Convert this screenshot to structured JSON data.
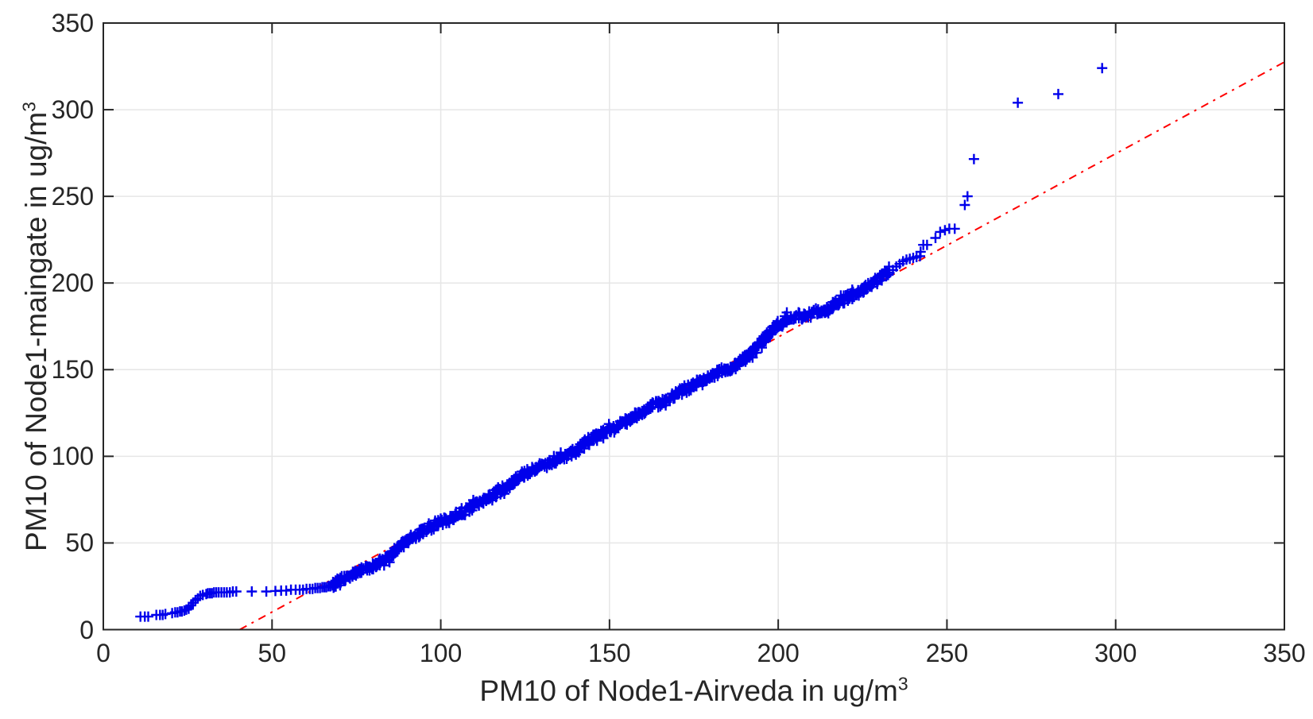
{
  "figure": {
    "kind": "qq-plot",
    "background": "#FFFFFF"
  },
  "chart_data": {
    "type": "scatter",
    "title": "",
    "xlabel": "PM10 of Node1-Airveda in ug/m",
    "xlabel_sup": "3",
    "ylabel": "PM10 of Node1-maingate in ug/m",
    "ylabel_sup": "3",
    "xlim": [
      0,
      350
    ],
    "ylim": [
      0,
      350
    ],
    "xticks": [
      0,
      50,
      100,
      150,
      200,
      250,
      300,
      350
    ],
    "yticks": [
      0,
      50,
      100,
      150,
      200,
      250,
      300,
      350
    ],
    "grid": true,
    "legend": "none",
    "style": {
      "marker_shape": "plus",
      "marker_color": "#0000EB",
      "marker_size": 13,
      "marker_stroke_width": 2.4,
      "band_jitter_x": 1.5,
      "band_jitter_y": 4.5,
      "grid_color": "#E6E6E6",
      "axis_color": "#262626",
      "tick_length": 13,
      "ref_line_color": "#FF0000",
      "ref_line_dash": "10 7 3 7",
      "ref_line_width": 2
    },
    "reference_line": {
      "style": "dash-dot",
      "color": "#FF0000",
      "points": [
        [
          40.4,
          0
        ],
        [
          350,
          327.5
        ]
      ]
    },
    "series": [
      {
        "name": "lower-tail-quantiles",
        "render": "points",
        "points": [
          [
            11,
            7.5
          ],
          [
            12.3,
            7.5
          ],
          [
            13.3,
            7.5
          ],
          [
            15.7,
            8.5
          ],
          [
            16.8,
            8.5
          ],
          [
            17.6,
            8.5
          ],
          [
            18.4,
            9
          ],
          [
            20.4,
            9.5
          ],
          [
            21.3,
            10
          ],
          [
            22,
            10
          ],
          [
            22.7,
            10.5
          ],
          [
            23.3,
            10.5
          ],
          [
            24,
            11
          ],
          [
            24.6,
            11.5
          ],
          [
            25.3,
            12
          ],
          [
            25.3,
            13
          ],
          [
            26,
            14
          ],
          [
            26.6,
            15.5
          ],
          [
            27.3,
            17
          ],
          [
            28,
            18
          ],
          [
            28.7,
            19.5
          ],
          [
            29.5,
            20
          ],
          [
            30.5,
            20.5
          ],
          [
            31,
            21
          ],
          [
            31.6,
            21
          ],
          [
            32.2,
            21
          ],
          [
            32.8,
            21.5
          ],
          [
            33.5,
            21.5
          ],
          [
            34.2,
            21.5
          ],
          [
            35,
            21.5
          ],
          [
            35.8,
            21.5
          ],
          [
            36.6,
            21.5
          ],
          [
            37.5,
            21.5
          ],
          [
            38.4,
            22
          ],
          [
            39.4,
            22
          ],
          [
            44,
            22
          ],
          [
            48.3,
            22
          ],
          [
            51,
            22.3
          ],
          [
            52.7,
            22.5
          ],
          [
            54.2,
            22.5
          ],
          [
            55.6,
            23
          ],
          [
            57,
            23
          ],
          [
            58.2,
            23
          ],
          [
            59.2,
            23
          ],
          [
            60.2,
            23.5
          ],
          [
            61.2,
            23.5
          ],
          [
            62,
            23.5
          ],
          [
            62.8,
            24
          ],
          [
            63.5,
            24
          ],
          [
            64.2,
            24
          ],
          [
            64.9,
            24.5
          ],
          [
            65.5,
            24.5
          ],
          [
            66.1,
            24.5
          ],
          [
            66.7,
            25
          ],
          [
            67.3,
            25
          ],
          [
            67.9,
            25.5
          ],
          [
            68.4,
            26.5
          ],
          [
            69,
            27.5
          ]
        ]
      },
      {
        "name": "dense-quantile-band",
        "render": "band",
        "marker_count": 820,
        "anchors": [
          [
            68,
            26
          ],
          [
            70,
            28
          ],
          [
            72,
            30
          ],
          [
            74,
            31.5
          ],
          [
            76,
            33.5
          ],
          [
            78,
            35
          ],
          [
            80,
            37
          ],
          [
            83,
            40
          ],
          [
            86,
            44
          ],
          [
            89,
            49
          ],
          [
            92,
            54
          ],
          [
            95,
            57
          ],
          [
            98,
            60
          ],
          [
            100,
            62
          ],
          [
            103,
            64.5
          ],
          [
            106,
            67
          ],
          [
            109,
            70
          ],
          [
            112,
            74
          ],
          [
            116,
            78
          ],
          [
            120,
            83
          ],
          [
            123,
            87
          ],
          [
            125,
            90
          ],
          [
            128,
            93
          ],
          [
            131,
            95
          ],
          [
            134,
            97
          ],
          [
            137,
            100
          ],
          [
            140,
            103
          ],
          [
            143,
            108
          ],
          [
            146,
            112
          ],
          [
            150,
            115
          ],
          [
            153,
            119
          ],
          [
            156,
            122
          ],
          [
            159,
            125
          ],
          [
            162,
            128
          ],
          [
            165,
            131
          ],
          [
            168,
            134
          ],
          [
            171,
            137
          ],
          [
            174,
            140
          ],
          [
            177,
            143
          ],
          [
            180,
            146
          ],
          [
            183,
            149
          ],
          [
            186,
            151
          ],
          [
            189,
            155
          ],
          [
            192,
            160
          ],
          [
            195,
            166
          ],
          [
            198,
            172
          ],
          [
            200,
            176
          ],
          [
            202,
            179
          ],
          [
            205,
            181
          ],
          [
            208,
            181.5
          ],
          [
            211,
            182.5
          ],
          [
            213,
            183.5
          ],
          [
            216,
            187
          ],
          [
            219,
            190
          ],
          [
            222,
            193
          ],
          [
            225,
            196
          ],
          [
            228,
            200
          ],
          [
            230,
            202.5
          ],
          [
            233,
            206
          ]
        ]
      },
      {
        "name": "upper-tail-quantiles",
        "render": "points",
        "points": [
          [
            234,
            207.5
          ],
          [
            235,
            209.5
          ],
          [
            236,
            211
          ],
          [
            237,
            212.5
          ],
          [
            238,
            213.5
          ],
          [
            239,
            214
          ],
          [
            240,
            214.5
          ],
          [
            241,
            215
          ],
          [
            242,
            215.5
          ],
          [
            242.2,
            218
          ],
          [
            243,
            222
          ],
          [
            244.1,
            222
          ],
          [
            246.6,
            226
          ],
          [
            248,
            229.5
          ],
          [
            249.4,
            230.5
          ],
          [
            250.7,
            231.3
          ],
          [
            252.3,
            231.3
          ],
          [
            255.3,
            245
          ],
          [
            256.1,
            250
          ],
          [
            258,
            271.5
          ],
          [
            271,
            304
          ],
          [
            283,
            309
          ],
          [
            296,
            324
          ]
        ]
      }
    ]
  }
}
